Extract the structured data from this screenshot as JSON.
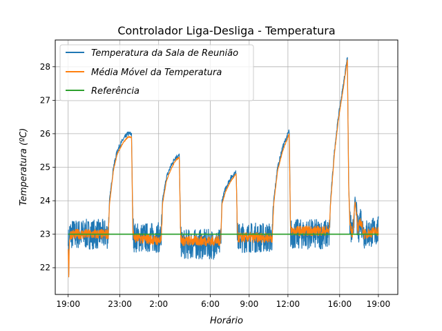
{
  "chart_data": {
    "type": "line",
    "title": "Controlador Liga-Desliga - Temperatura",
    "xlabel": "Horário",
    "ylabel": "Temperatura (ºC)",
    "x_ticks": [
      "19:00",
      "23:00",
      "2:00",
      "6:00",
      "9:00",
      "12:00",
      "16:00",
      "19:00"
    ],
    "x_tick_hours": [
      0,
      4,
      7,
      11,
      14,
      17,
      21,
      24
    ],
    "xlim_hours": [
      -1,
      25.5
    ],
    "ylim": [
      21.2,
      28.8
    ],
    "y_ticks": [
      22,
      23,
      24,
      25,
      26,
      27,
      28
    ],
    "grid": true,
    "legend_position": "top-left",
    "series": [
      {
        "name": "Temperatura da Sala de Reunião",
        "color": "#1f77b4",
        "band": 0.45,
        "x_hours": [
          0,
          0.05,
          0.1,
          0.2,
          3.1,
          3.2,
          3.5,
          3.8,
          4.2,
          4.6,
          4.9,
          5.0,
          5.1,
          7.2,
          7.3,
          7.6,
          7.9,
          8.3,
          8.6,
          8.7,
          8.8,
          11.8,
          11.9,
          12.2,
          12.6,
          13.0,
          13.1,
          13.2,
          15.8,
          15.9,
          16.2,
          16.6,
          17.0,
          17.1,
          17.2,
          20.2,
          20.3,
          20.6,
          20.9,
          21.3,
          21.6,
          21.7,
          21.8,
          22.0,
          22.2,
          22.4,
          22.6,
          22.9,
          24.0
        ],
        "values": [
          23.1,
          22.0,
          23.0,
          23.0,
          23.0,
          24.0,
          25.0,
          25.5,
          25.8,
          26.0,
          26.0,
          23.2,
          22.9,
          22.9,
          24.0,
          24.7,
          25.0,
          25.3,
          25.35,
          22.8,
          22.7,
          22.7,
          24.0,
          24.4,
          24.7,
          24.85,
          22.9,
          22.9,
          22.9,
          24.0,
          25.0,
          25.6,
          26.0,
          26.1,
          23.0,
          23.0,
          24.0,
          25.5,
          26.5,
          27.5,
          28.3,
          24.5,
          23.3,
          22.9,
          24.1,
          23.0,
          23.5,
          23.0,
          23.1
        ]
      },
      {
        "name": "Média Móvel da Temperatura",
        "color": "#ff7f0e",
        "band": 0.15,
        "x_hours": [
          0,
          0.05,
          0.1,
          0.2,
          3.1,
          3.2,
          3.5,
          3.8,
          4.2,
          4.6,
          4.9,
          5.0,
          5.1,
          7.2,
          7.3,
          7.6,
          7.9,
          8.3,
          8.6,
          8.7,
          8.8,
          11.8,
          11.9,
          12.2,
          12.6,
          13.0,
          13.1,
          13.2,
          15.8,
          15.9,
          16.2,
          16.6,
          17.0,
          17.1,
          17.2,
          20.2,
          20.3,
          20.6,
          20.9,
          21.3,
          21.6,
          21.7,
          21.8,
          22.0,
          22.2,
          22.4,
          22.6,
          22.9,
          24.0
        ],
        "values": [
          22.6,
          21.8,
          22.9,
          23.0,
          23.0,
          23.9,
          24.9,
          25.4,
          25.7,
          25.9,
          25.9,
          23.1,
          22.9,
          22.8,
          23.9,
          24.6,
          24.9,
          25.2,
          25.3,
          22.9,
          22.8,
          22.8,
          23.9,
          24.3,
          24.6,
          24.8,
          22.9,
          22.9,
          22.9,
          23.9,
          24.9,
          25.5,
          25.9,
          26.0,
          23.1,
          23.1,
          23.9,
          25.4,
          26.4,
          27.4,
          28.2,
          24.4,
          23.2,
          23.0,
          24.0,
          23.1,
          23.4,
          23.0,
          23.1
        ]
      },
      {
        "name": "Referência",
        "color": "#2ca02c",
        "band": 0,
        "x_hours": [
          0,
          24
        ],
        "values": [
          23.0,
          23.0
        ]
      }
    ]
  }
}
